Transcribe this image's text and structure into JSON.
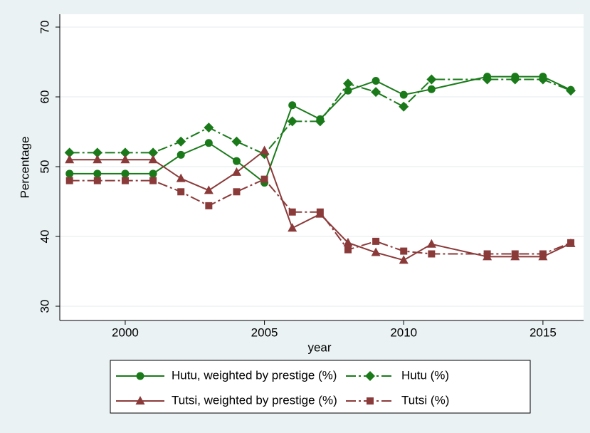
{
  "chart_data": {
    "type": "line",
    "x": [
      1998,
      1999,
      2000,
      2001,
      2002,
      2003,
      2004,
      2005,
      2006,
      2007,
      2008,
      2009,
      2010,
      2011,
      2013,
      2014,
      2015,
      2016
    ],
    "xlabel": "year",
    "ylabel": "Percentage",
    "xlim": [
      1997.65,
      2016.46
    ],
    "xticks": [
      2000,
      2005,
      2010,
      2015
    ],
    "ylim": [
      27.96,
      71.84
    ],
    "yticks": [
      30,
      40,
      50,
      60,
      70
    ],
    "grid": true,
    "legend": "bottom",
    "series": [
      {
        "name": "Hutu, weighted by prestige (%)",
        "color": "#1a7a1a",
        "line_style": "solid",
        "marker": "circle",
        "values": [
          49,
          49,
          49,
          49,
          51.7,
          53.4,
          50.8,
          47.7,
          58.8,
          56.8,
          60.9,
          62.3,
          60.3,
          61.1,
          62.9,
          62.9,
          62.9,
          61.0
        ]
      },
      {
        "name": "Hutu (%)",
        "color": "#1a7a1a",
        "line_style": "dashdot",
        "marker": "diamond",
        "values": [
          52,
          52,
          52,
          52,
          53.6,
          55.6,
          53.6,
          51.8,
          56.5,
          56.5,
          61.9,
          60.7,
          58.6,
          62.5,
          62.5,
          62.5,
          62.5,
          60.9
        ]
      },
      {
        "name": "Tutsi, weighted by prestige (%)",
        "color": "#8b3a3a",
        "line_style": "solid",
        "marker": "triangle",
        "values": [
          51,
          51,
          51,
          51,
          48.3,
          46.6,
          49.2,
          52.3,
          41.2,
          43.2,
          39.1,
          37.7,
          36.6,
          38.9,
          37.1,
          37.1,
          37.1,
          39.0
        ]
      },
      {
        "name": "Tutsi (%)",
        "color": "#8b3a3a",
        "line_style": "dashdot",
        "marker": "square",
        "values": [
          48,
          48,
          48,
          48,
          46.4,
          44.4,
          46.4,
          48.2,
          43.5,
          43.5,
          38.1,
          39.3,
          37.9,
          37.5,
          37.5,
          37.5,
          37.5,
          39.1
        ]
      }
    ]
  }
}
